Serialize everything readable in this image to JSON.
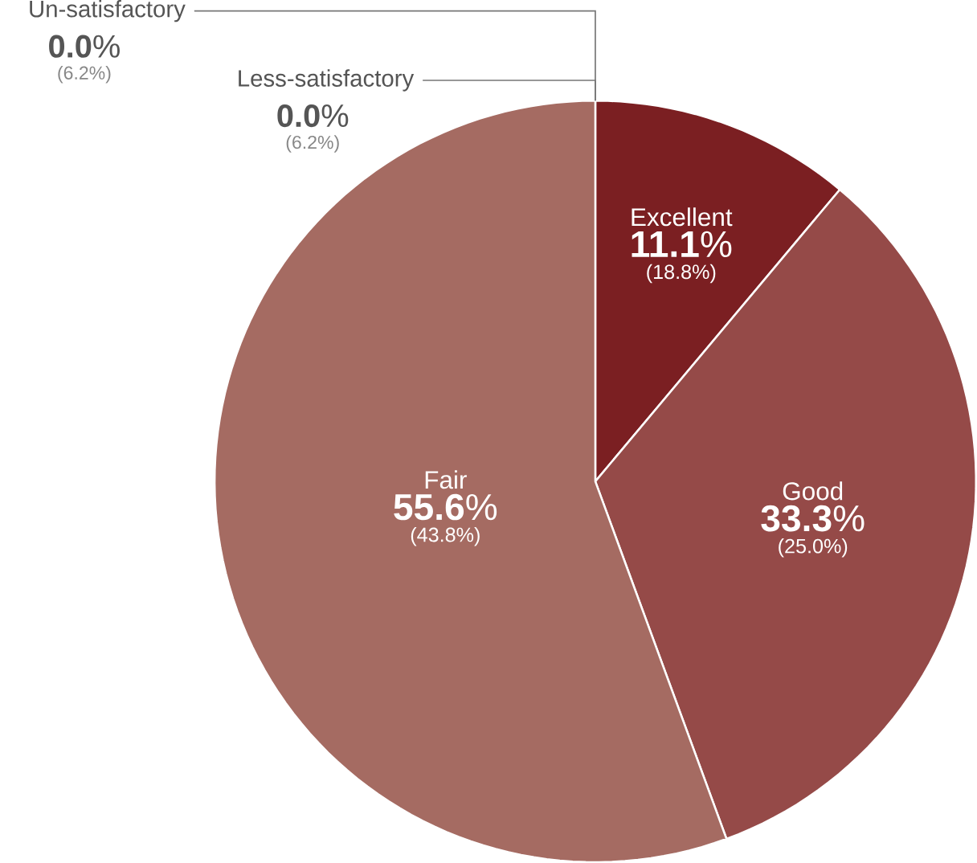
{
  "chart_data": {
    "type": "pie",
    "categories": [
      "Excellent",
      "Good",
      "Fair",
      "Less-satisfactory",
      "Un-satisfactory"
    ],
    "values": [
      11.1,
      33.3,
      55.6,
      0.0,
      0.0
    ],
    "value_labels": [
      "**11.1**%",
      "**33.3**%",
      "**55.6**%",
      "**0.0**%",
      "**0.0**%"
    ],
    "annotations": [
      "(18.8%)",
      "(25.0%)",
      "(43.8%)",
      "(6.2%)",
      "(6.2%)"
    ],
    "colors": [
      "#7b1f22",
      "#954a48",
      "#a56b62",
      "#a56b62",
      "#a56b62"
    ]
  }
}
